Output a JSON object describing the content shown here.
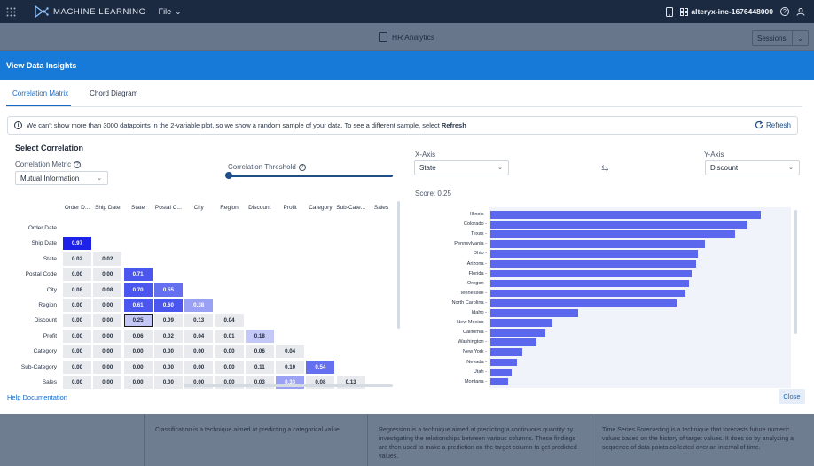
{
  "topbar": {
    "app_title": "MACHINE LEARNING",
    "file_menu": "File",
    "org_name": "alteryx-inc-1676448000"
  },
  "background": {
    "project_title": "HR Analytics",
    "sessions_label": "Sessions",
    "cards": [
      "Classification is a technique aimed at predicting a categorical value.",
      "Regression is a technique aimed at predicting a continuous quantity by investigating the relationships between various columns. These findings are then used to make a prediction on the target column to get predicted values.",
      "Time Series Forecasting is a technique that forecasts future numeric values based on the history of target values. It does so by analyzing a sequence of data points collected over an interval of time."
    ]
  },
  "modal": {
    "title": "View Data Insights",
    "tabs": [
      {
        "label": "Correlation Matrix",
        "active": true
      },
      {
        "label": "Chord Diagram",
        "active": false
      }
    ],
    "info_text": "We can't show more than 3000 datapoints in the 2-variable plot, so we show a random sample of your data. To see a different sample, select",
    "info_link": "Refresh",
    "refresh_label": "Refresh",
    "select_title": "Select Correlation",
    "metric_label": "Correlation Metric",
    "metric_value": "Mutual Information",
    "threshold_label": "Correlation Threshold",
    "threshold_value": 0,
    "x_axis_label": "X-Axis",
    "x_axis_value": "State",
    "y_axis_label": "Y-Axis",
    "y_axis_value": "Discount",
    "score": "Score: 0.25",
    "help_label": "Help Documentation",
    "close_label": "Close"
  },
  "matrix": {
    "columns": [
      "Order D...",
      "Ship Date",
      "State",
      "Postal C...",
      "City",
      "Region",
      "Discount",
      "Profit",
      "Category",
      "Sub-Cate...",
      "Sales"
    ],
    "rows": [
      {
        "label": "Order Date",
        "values": []
      },
      {
        "label": "Ship Date",
        "values": [
          "0.97"
        ]
      },
      {
        "label": "State",
        "values": [
          "0.02",
          "0.02"
        ]
      },
      {
        "label": "Postal Code",
        "values": [
          "0.00",
          "0.00",
          "0.71"
        ]
      },
      {
        "label": "City",
        "values": [
          "0.08",
          "0.08",
          "0.70",
          "0.55"
        ]
      },
      {
        "label": "Region",
        "values": [
          "0.00",
          "0.00",
          "0.61",
          "0.60",
          "0.38"
        ]
      },
      {
        "label": "Discount",
        "values": [
          "0.00",
          "0.00",
          "0.25",
          "0.09",
          "0.13",
          "0.04"
        ]
      },
      {
        "label": "Profit",
        "values": [
          "0.00",
          "0.00",
          "0.06",
          "0.02",
          "0.04",
          "0.01",
          "0.18"
        ]
      },
      {
        "label": "Category",
        "values": [
          "0.00",
          "0.00",
          "0.00",
          "0.00",
          "0.00",
          "0.00",
          "0.06",
          "0.04"
        ]
      },
      {
        "label": "Sub-Category",
        "values": [
          "0.00",
          "0.00",
          "0.00",
          "0.00",
          "0.00",
          "0.00",
          "0.11",
          "0.10",
          "0.54"
        ]
      },
      {
        "label": "Sales",
        "values": [
          "0.00",
          "0.00",
          "0.00",
          "0.00",
          "0.00",
          "0.00",
          "0.03",
          "0.33",
          "0.08",
          "0.13"
        ]
      }
    ],
    "selected": {
      "row": 6,
      "col": 2
    }
  },
  "chart_data": {
    "type": "bar",
    "orientation": "horizontal",
    "categories": [
      "Illinois",
      "Colorado",
      "Texas",
      "Pennsylvania",
      "Ohio",
      "Arizona",
      "Florida",
      "Oregon",
      "Tennessee",
      "North Carolina",
      "Idaho",
      "New Mexico",
      "California",
      "Washington",
      "New York",
      "Nevada",
      "Utah",
      "Montana"
    ],
    "values": [
      0.301,
      0.286,
      0.272,
      0.239,
      0.231,
      0.229,
      0.224,
      0.221,
      0.217,
      0.207,
      0.098,
      0.069,
      0.061,
      0.051,
      0.036,
      0.03,
      0.024,
      0.02
    ],
    "bar_color": "#5b68ee",
    "title": "",
    "xlabel": "",
    "ylabel": ""
  },
  "colors": {
    "header": "#1779d8",
    "topbar": "#1b2a41",
    "accent": "#1869c4"
  }
}
